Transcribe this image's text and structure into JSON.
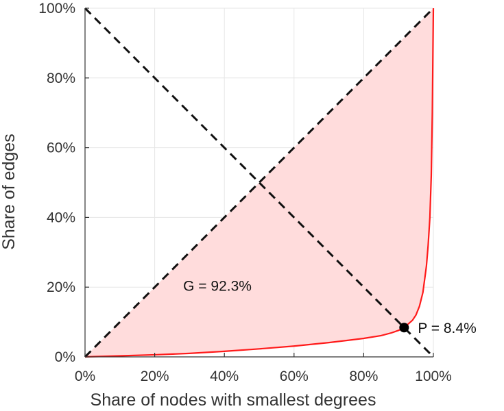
{
  "chart_data": {
    "type": "line",
    "title": "",
    "xlabel": "Share of nodes with smallest degrees",
    "ylabel": "Share of edges",
    "xlim": [
      0,
      100
    ],
    "ylim": [
      0,
      100
    ],
    "xticks": [
      0,
      20,
      40,
      60,
      80,
      100
    ],
    "yticks": [
      0,
      20,
      40,
      60,
      80,
      100
    ],
    "xtick_labels": [
      "0%",
      "20%",
      "40%",
      "60%",
      "80%",
      "100%"
    ],
    "ytick_labels": [
      "0%",
      "20%",
      "40%",
      "60%",
      "80%",
      "100%"
    ],
    "grid": true,
    "series": [
      {
        "name": "Lorenz curve",
        "color": "#ff1a1a",
        "fill_color": "#ffdcdc",
        "x": [
          0,
          10,
          20,
          30,
          40,
          50,
          60,
          70,
          80,
          85,
          88,
          90,
          91.6,
          94,
          95,
          96,
          97,
          98,
          98.5,
          99,
          99.4,
          99.7,
          100
        ],
        "y": [
          0,
          0.3,
          0.6,
          1.0,
          1.6,
          2.3,
          3.1,
          4.1,
          5.3,
          6.1,
          6.9,
          7.6,
          8.4,
          10.5,
          12,
          14.5,
          18.5,
          26,
          32,
          40,
          52,
          70,
          100
        ]
      },
      {
        "name": "Line of equality",
        "color": "#111111",
        "dash": true,
        "x": [
          0,
          100
        ],
        "y": [
          0,
          100
        ]
      },
      {
        "name": "Anti-diagonal",
        "color": "#111111",
        "dash": true,
        "x": [
          0,
          100
        ],
        "y": [
          100,
          0
        ]
      }
    ],
    "point": {
      "x": 91.6,
      "y": 8.4,
      "label": "P = 8.4%"
    },
    "annotations": [
      {
        "text": "G = 92.3%",
        "x": 38,
        "y": 19
      }
    ]
  }
}
